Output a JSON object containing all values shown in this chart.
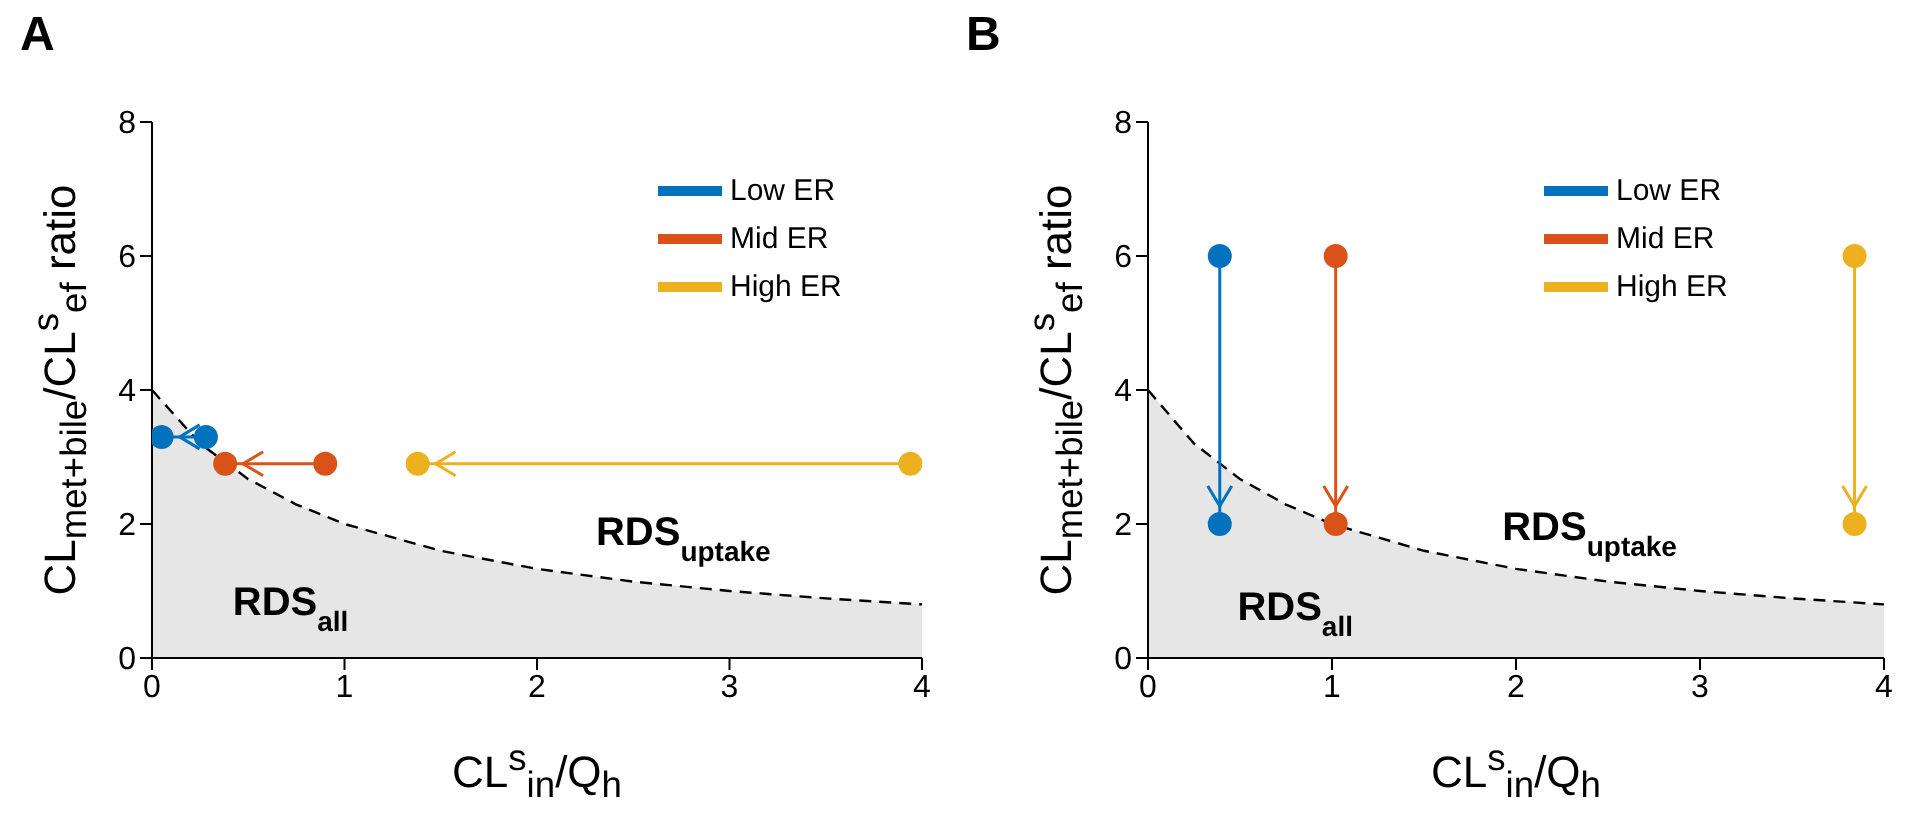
{
  "chart_data": [
    {
      "type": "scatter",
      "title": "A",
      "xlabel": "CL$^{s}$$_{in}$/Q$_{h}$",
      "ylabel": "CL$_{met+bile}$/CL$^{s}$$_{ef}$ ratio",
      "xlim": [
        0,
        4
      ],
      "xticks": [
        0,
        1,
        2,
        3,
        4
      ],
      "ylim": [
        0,
        8
      ],
      "yticks": [
        0,
        2,
        4,
        6,
        8
      ],
      "grid": false,
      "legend": "top right",
      "series": [
        {
          "type": "area",
          "color": "#e6e6e6",
          "line_style": "dashed",
          "x": [
            0,
            0.25,
            0.5,
            0.75,
            1,
            1.5,
            2,
            2.5,
            3,
            3.5,
            4
          ],
          "values": [
            4,
            3.2,
            2.67,
            2.29,
            2,
            1.6,
            1.33,
            1.14,
            1,
            0.89,
            0.8
          ]
        },
        {
          "type": "line",
          "name": "Low ER",
          "color": "#0072bd",
          "marker": "circle",
          "x": [
            0.28,
            0.05
          ],
          "values": [
            3.3,
            3.3
          ]
        },
        {
          "type": "line",
          "name": "Mid ER",
          "color": "#d95319",
          "marker": "circle",
          "x": [
            0.9,
            0.38
          ],
          "values": [
            2.9,
            2.9
          ]
        },
        {
          "type": "line",
          "name": "High ER",
          "color": "#edb120",
          "marker": "circle",
          "x": [
            3.94,
            1.38
          ],
          "values": [
            2.9,
            2.9
          ]
        }
      ],
      "annotations": [
        "RDS$_{uptake}$",
        "RDS$_{all}$"
      ]
    },
    {
      "type": "scatter",
      "title": "B",
      "xlabel": "CL$^{s}$$_{in}$/Q$_{h}$",
      "ylabel": "CL$_{met+bile}$/CL$^{s}$$_{ef}$ ratio",
      "xlim": [
        0,
        4
      ],
      "xticks": [
        0,
        1,
        2,
        3,
        4
      ],
      "ylim": [
        0,
        8
      ],
      "yticks": [
        0,
        2,
        4,
        6,
        8
      ],
      "grid": false,
      "legend": "top right",
      "series": [
        {
          "type": "area",
          "color": "#e6e6e6",
          "line_style": "dashed",
          "x": [
            0,
            0.25,
            0.5,
            0.75,
            1,
            1.5,
            2,
            2.5,
            3,
            3.5,
            4
          ],
          "values": [
            4,
            3.2,
            2.67,
            2.29,
            2,
            1.6,
            1.33,
            1.14,
            1,
            0.89,
            0.8
          ]
        },
        {
          "type": "line",
          "name": "Low ER",
          "color": "#0072bd",
          "marker": "circle",
          "x": [
            0.39,
            0.39
          ],
          "values": [
            6,
            2
          ]
        },
        {
          "type": "line",
          "name": "Mid ER",
          "color": "#d95319",
          "marker": "circle",
          "x": [
            1.02,
            1.02
          ],
          "values": [
            6,
            2
          ]
        },
        {
          "type": "line",
          "name": "High ER",
          "color": "#edb120",
          "marker": "circle",
          "x": [
            3.84,
            3.84
          ],
          "values": [
            6,
            2
          ]
        }
      ],
      "annotations": [
        "RDS$_{uptake}$",
        "RDS$_{all}$"
      ]
    }
  ]
}
